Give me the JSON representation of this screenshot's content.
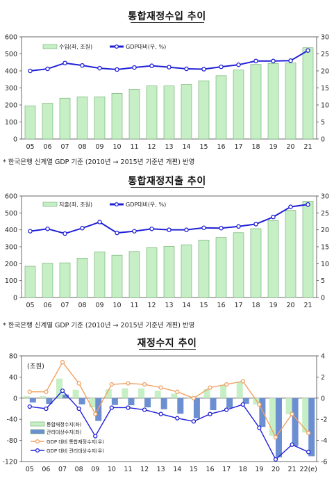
{
  "chart_data": [
    {
      "type": "bar",
      "title": "통합재정수입 추이",
      "note": "* 한국은행 신계열 GDP 기준 (2010년 → 2015년 기준년 개편) 반영",
      "categories": [
        "05",
        "06",
        "07",
        "08",
        "09",
        "10",
        "11",
        "12",
        "13",
        "14",
        "15",
        "16",
        "17",
        "18",
        "19",
        "20",
        "21"
      ],
      "left_axis": {
        "min": 0,
        "max": 600,
        "ticks": [
          0,
          100,
          200,
          300,
          400,
          500,
          600
        ]
      },
      "right_axis": {
        "min": 0,
        "max": 30,
        "ticks": [
          0,
          5,
          10,
          15,
          20,
          25,
          30
        ]
      },
      "series": [
        {
          "name": "수입(좌, 조원)",
          "type": "bar",
          "axis": "left",
          "color": "#c6efc6",
          "values": [
            195,
            210,
            240,
            248,
            248,
            268,
            292,
            312,
            312,
            320,
            342,
            372,
            405,
            438,
            444,
            447,
            536
          ]
        },
        {
          "name": "GDP대비(우, %)",
          "type": "line",
          "axis": "right",
          "color": "#1f1fd6",
          "values": [
            20.0,
            20.6,
            22.3,
            21.6,
            20.8,
            20.4,
            21.0,
            21.5,
            21.1,
            20.6,
            20.5,
            21.2,
            21.8,
            22.9,
            22.9,
            23.0,
            26.0
          ]
        }
      ]
    },
    {
      "type": "bar",
      "title": "통합재정지출 추이",
      "note": "* 한국은행 신계열 GDP 기준 (2010년 → 2015년 기준년 개편) 반영",
      "categories": [
        "05",
        "06",
        "07",
        "08",
        "09",
        "10",
        "11",
        "12",
        "13",
        "14",
        "15",
        "16",
        "17",
        "18",
        "19",
        "20",
        "21"
      ],
      "left_axis": {
        "min": 0,
        "max": 600,
        "ticks": [
          0,
          100,
          200,
          300,
          400,
          500,
          600
        ]
      },
      "right_axis": {
        "min": 0,
        "max": 30,
        "ticks": [
          0,
          5,
          10,
          15,
          20,
          25,
          30
        ]
      },
      "series": [
        {
          "name": "지출(좌, 조원)",
          "type": "bar",
          "axis": "left",
          "color": "#c6efc6",
          "values": [
            185,
            203,
            205,
            233,
            270,
            250,
            272,
            295,
            303,
            312,
            340,
            355,
            383,
            407,
            455,
            515,
            570
          ]
        },
        {
          "name": "GDP대비(우, %)",
          "type": "line",
          "axis": "right",
          "color": "#1f1fd6",
          "values": [
            19.6,
            20.3,
            18.9,
            20.5,
            22.3,
            19.1,
            19.6,
            20.3,
            20.0,
            20.0,
            20.6,
            20.5,
            21.0,
            21.7,
            23.8,
            26.8,
            27.5
          ]
        }
      ]
    },
    {
      "type": "bar",
      "title": "재정수지 추이",
      "unit_label": "(조원)",
      "categories": [
        "05",
        "06",
        "07",
        "08",
        "09",
        "10",
        "11",
        "12",
        "13",
        "14",
        "15",
        "16",
        "17",
        "18",
        "19",
        "20",
        "21",
        "22(e)"
      ],
      "left_axis": {
        "min": -120,
        "max": 80,
        "ticks": [
          -120,
          -80,
          -40,
          0,
          40,
          80
        ]
      },
      "right_axis": {
        "min": -6,
        "max": 4,
        "ticks": [
          -6,
          -4,
          -2,
          0,
          2,
          4
        ]
      },
      "series": [
        {
          "name": "통합재정수지(좌)",
          "type": "bar",
          "axis": "left",
          "color": "#c6efc6",
          "values": [
            3.5,
            3.6,
            37.0,
            15.8,
            -17.6,
            16.7,
            18.6,
            18.5,
            14.2,
            8.5,
            -0.2,
            16.9,
            24.0,
            31.2,
            -12.0,
            -71.2,
            -30.5,
            -65.0
          ]
        },
        {
          "name": "관리대상수지(좌)",
          "type": "bar",
          "axis": "left",
          "color": "#6b8fd1",
          "values": [
            -8.3,
            -10.8,
            6.8,
            -11.7,
            -43.2,
            -13.0,
            -13.5,
            -17.4,
            -21.1,
            -29.5,
            -38.0,
            -22.7,
            -18.5,
            -10.6,
            -54.4,
            -112.0,
            -90.6,
            -110.0
          ]
        },
        {
          "name": "GDP 대비 통합재정수지(우)",
          "type": "line",
          "axis": "right",
          "color": "#f0a060",
          "values": [
            0.6,
            0.6,
            3.4,
            1.4,
            -1.5,
            1.3,
            1.4,
            1.3,
            1.0,
            0.6,
            0.0,
            1.0,
            1.3,
            1.6,
            -0.6,
            -3.7,
            -1.5,
            -3.3
          ]
        },
        {
          "name": "GDP 대비 관리대상수지(우)",
          "type": "line",
          "axis": "right",
          "color": "#1f1fd6",
          "values": [
            -0.8,
            -1.0,
            0.7,
            -1.0,
            -3.6,
            -0.9,
            -0.9,
            -1.1,
            -1.5,
            -1.9,
            -2.2,
            -1.5,
            -1.1,
            -0.6,
            -2.8,
            -5.8,
            -4.4,
            -5.1
          ]
        }
      ]
    }
  ]
}
